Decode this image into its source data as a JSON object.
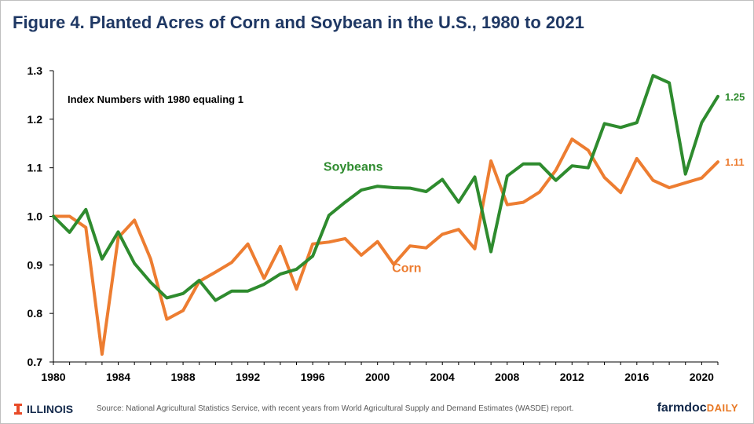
{
  "title": "Figure 4.  Planted Acres of Corn and Soybean in the U.S., 1980 to 2021",
  "footer": {
    "logo_text": "ILLINOIS",
    "source": "Source: National Agricultural Statistics Service, with recent years from World Agricultural Supply and Demand Estimates (WASDE) report.",
    "brand_main": "farmdoc",
    "brand_accent": "DAILY"
  },
  "colors": {
    "title": "#1f3864",
    "soybeans": "#2e8b2e",
    "corn": "#ed7d31",
    "brand": "#13294b",
    "illinois_orange": "#e84a27"
  },
  "chart_data": {
    "type": "line",
    "annotation": "Index Numbers with 1980 equaling 1",
    "x": [
      1980,
      1981,
      1982,
      1983,
      1984,
      1985,
      1986,
      1987,
      1988,
      1989,
      1990,
      1991,
      1992,
      1993,
      1994,
      1995,
      1996,
      1997,
      1998,
      1999,
      2000,
      2001,
      2002,
      2003,
      2004,
      2005,
      2006,
      2007,
      2008,
      2009,
      2010,
      2011,
      2012,
      2013,
      2014,
      2015,
      2016,
      2017,
      2018,
      2019,
      2020,
      2021
    ],
    "xticks": [
      "1980",
      "1984",
      "1988",
      "1992",
      "1996",
      "2000",
      "2004",
      "2008",
      "2012",
      "2016",
      "2020"
    ],
    "xlim": [
      1980,
      2021
    ],
    "ylim": [
      0.7,
      1.3
    ],
    "yticks": [
      "0.7",
      "0.8",
      "0.9",
      "1.0",
      "1.1",
      "1.2",
      "1.3"
    ],
    "grid": false,
    "series": [
      {
        "name": "Soybeans",
        "end_label": "1.25",
        "values": [
          1.0,
          0.967,
          1.014,
          0.912,
          0.968,
          0.903,
          0.864,
          0.832,
          0.841,
          0.868,
          0.827,
          0.846,
          0.846,
          0.86,
          0.881,
          0.891,
          0.918,
          1.002,
          1.029,
          1.054,
          1.062,
          1.059,
          1.058,
          1.051,
          1.076,
          1.029,
          1.081,
          0.927,
          1.083,
          1.108,
          1.108,
          1.074,
          1.104,
          1.1,
          1.191,
          1.183,
          1.193,
          1.29,
          1.275,
          1.087,
          1.193,
          1.247
        ]
      },
      {
        "name": "Corn",
        "end_label": "1.11",
        "values": [
          1.0,
          1.0,
          0.977,
          0.716,
          0.956,
          0.992,
          0.912,
          0.788,
          0.806,
          0.866,
          0.885,
          0.905,
          0.943,
          0.872,
          0.938,
          0.85,
          0.943,
          0.947,
          0.954,
          0.92,
          0.948,
          0.901,
          0.939,
          0.935,
          0.963,
          0.973,
          0.933,
          1.114,
          1.024,
          1.029,
          1.05,
          1.095,
          1.159,
          1.136,
          1.08,
          1.049,
          1.119,
          1.074,
          1.059,
          1.069,
          1.079,
          1.112
        ]
      }
    ]
  }
}
